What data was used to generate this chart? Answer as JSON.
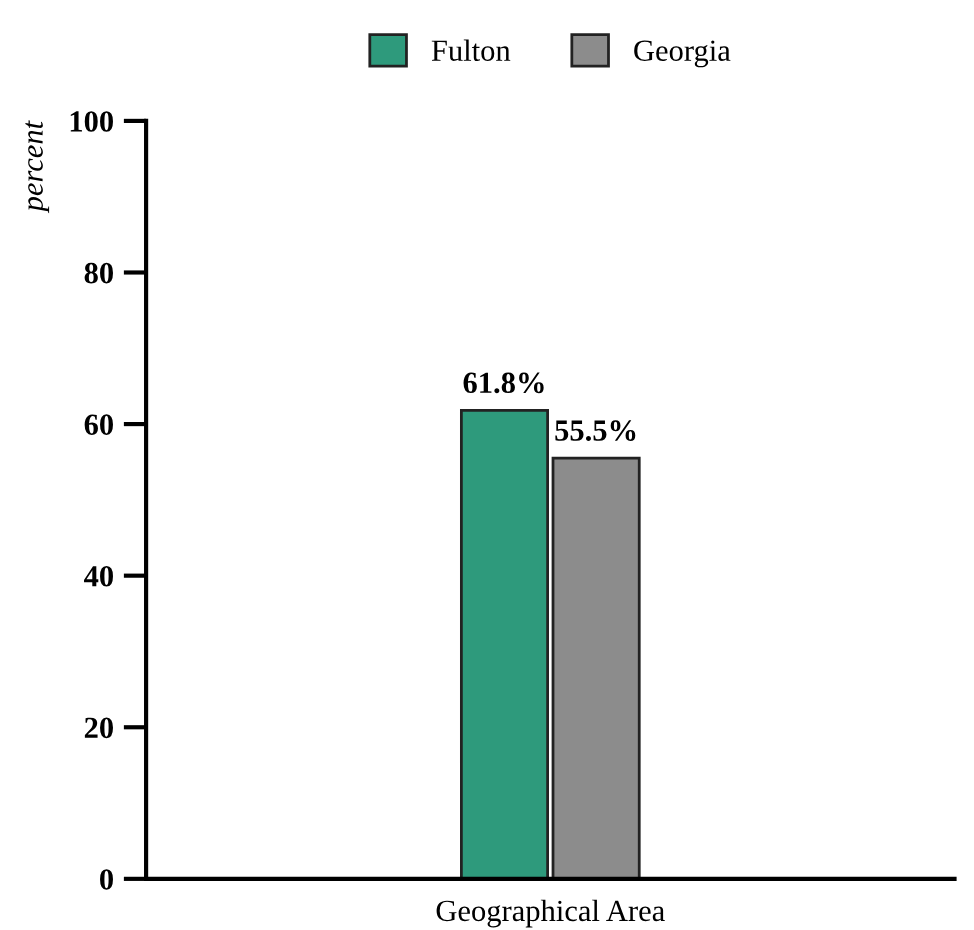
{
  "chart_data": {
    "type": "bar",
    "ylabel": "percent",
    "xlabel": "Geographical Area",
    "categories": [
      null
    ],
    "series": [
      {
        "name": "Fulton",
        "color": "#2e9a7c",
        "values": [
          61.8
        ],
        "value_labels": [
          "61.8%"
        ]
      },
      {
        "name": "Georgia",
        "color": "#8c8c8c",
        "values": [
          55.5
        ],
        "value_labels": [
          "55.5%"
        ]
      }
    ],
    "ylim": [
      0,
      100
    ],
    "yticks": [
      0,
      20,
      40,
      60,
      80,
      100
    ],
    "grid": false,
    "legend": "top"
  }
}
